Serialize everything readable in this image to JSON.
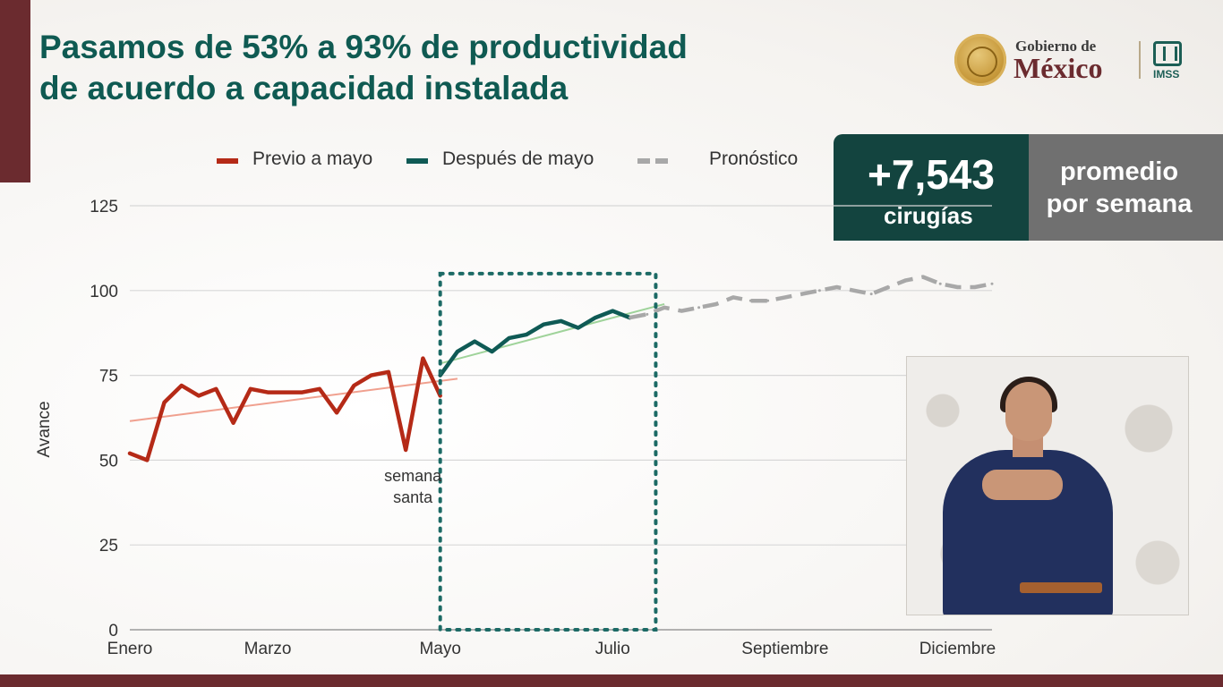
{
  "title": {
    "line1": "Pasamos de 53% a 93% de productividad",
    "line2": "de acuerdo a capacidad instalada"
  },
  "logo": {
    "top": "Gobierno de",
    "main": "México",
    "agency": "IMSS",
    "icons": [
      "national-seal-icon",
      "imss-logo-icon"
    ]
  },
  "badge": {
    "number": "+7,543",
    "unit": "cirugías",
    "text_line1": "promedio",
    "text_line2": "por semana"
  },
  "colors": {
    "brand_dark": "#6b2b2f",
    "title_teal": "#0f5a52",
    "series_before": "#b52a17",
    "series_after": "#0f5a55",
    "series_forecast": "#a8a8a8",
    "trend_before": "#f0a08f",
    "trend_after": "#9fd39a",
    "box_dots": "#1c6a65"
  },
  "chart_data": {
    "type": "line",
    "ylabel": "Avance",
    "ylim": [
      0,
      125
    ],
    "yticks": [
      0,
      25,
      50,
      75,
      100,
      125
    ],
    "x_axis_labels": [
      "Enero",
      "Marzo",
      "Mayo",
      "Julio",
      "Septiembre",
      "Diciembre"
    ],
    "x_axis_weeks": [
      0,
      8,
      18,
      28,
      38,
      48
    ],
    "xlim": [
      0,
      50
    ],
    "grid": true,
    "legend_position": "top",
    "series": [
      {
        "name": "Previo a mayo",
        "style": "solid",
        "x": [
          0,
          1,
          2,
          3,
          4,
          5,
          6,
          7,
          8,
          9,
          10,
          11,
          12,
          13,
          14,
          15,
          16,
          17,
          18
        ],
        "values": [
          52,
          50,
          67,
          72,
          69,
          71,
          61,
          71,
          70,
          70,
          70,
          71,
          64,
          72,
          75,
          76,
          53,
          80,
          69
        ]
      },
      {
        "name": "Después de mayo",
        "style": "solid",
        "x": [
          18,
          19,
          20,
          21,
          22,
          23,
          24,
          25,
          26,
          27,
          28,
          29
        ],
        "values": [
          75,
          82,
          85,
          82,
          86,
          87,
          90,
          91,
          89,
          92,
          94,
          92
        ]
      },
      {
        "name": "Pronóstico",
        "style": "dashed",
        "x": [
          29,
          30,
          31,
          32,
          33,
          34,
          35,
          36,
          37,
          38,
          39,
          40,
          41,
          42,
          43,
          44,
          45,
          46,
          47,
          48,
          49,
          50
        ],
        "values": [
          92,
          93,
          95,
          94,
          95,
          96,
          98,
          97,
          97,
          98,
          99,
          100,
          101,
          100,
          99,
          101,
          103,
          104,
          102,
          101,
          101,
          102
        ]
      }
    ],
    "trendlines": [
      {
        "series": "Previo a mayo",
        "x": [
          0,
          19
        ],
        "values": [
          61.5,
          74
        ]
      },
      {
        "series": "Después de mayo",
        "x": [
          18,
          31
        ],
        "values": [
          78.5,
          96
        ]
      }
    ],
    "highlight_box": {
      "x": [
        18,
        30.5
      ],
      "y": [
        0,
        105
      ]
    },
    "annotation": {
      "line1": "semana",
      "line2": "santa",
      "x": 16,
      "y": 53
    }
  }
}
